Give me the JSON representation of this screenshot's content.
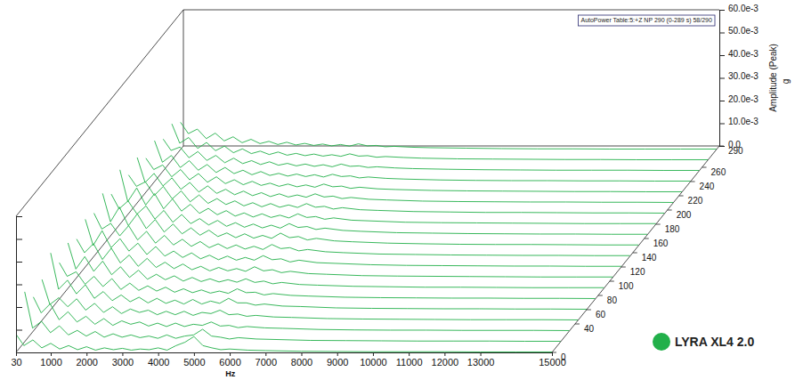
{
  "chart_data": {
    "type": "waterfall",
    "annotation": "AutoPower Table:5:+Z NP 290 (0-289 s) 58/290",
    "xlabel": "Hz",
    "ylabel": "Amplitude (Peak)",
    "yunit": "g",
    "x": [
      30,
      250,
      500,
      750,
      1000,
      1250,
      1500,
      1750,
      2000,
      2250,
      2500,
      2750,
      3000,
      3250,
      3500,
      3750,
      4000,
      4250,
      4500,
      4750,
      5000,
      5250,
      5500,
      5750,
      6000,
      6500,
      7000,
      8000,
      9000,
      10000,
      11000,
      12000,
      13000,
      14000,
      15000
    ],
    "xlim": [
      30,
      15000
    ],
    "xticks": [
      30,
      1000,
      2000,
      3000,
      4000,
      5000,
      6000,
      7000,
      8000,
      9000,
      10000,
      11000,
      12000,
      13000,
      15000
    ],
    "ylim": [
      0,
      0.06
    ],
    "yticks": [
      {
        "value": 0,
        "label": "0.0"
      },
      {
        "value": 0.01,
        "label": "10.0e-3"
      },
      {
        "value": 0.02,
        "label": "20.0e-3"
      },
      {
        "value": 0.03,
        "label": "30.0e-3"
      },
      {
        "value": 0.04,
        "label": "40.0e-3"
      },
      {
        "value": 0.05,
        "label": "50.0e-3"
      },
      {
        "value": 0.06,
        "label": "60.0e-3"
      }
    ],
    "zlim": [
      0,
      290
    ],
    "zticks": [
      0,
      40,
      60,
      80,
      100,
      120,
      140,
      160,
      180,
      200,
      220,
      240,
      260,
      290
    ],
    "legend": "bottom-right",
    "series": [
      {
        "name": "LYRA XL4 2.0",
        "color": "#22b04a",
        "z": [
          0,
          15,
          30,
          45,
          60,
          75,
          90,
          105,
          120,
          135,
          150,
          165,
          180,
          195,
          210,
          225,
          240,
          255,
          270,
          285
        ],
        "values": [
          [
            0.008,
            0.003,
            0.0055,
            0.002,
            0.004,
            0.0015,
            0.003,
            0.0012,
            0.0025,
            0.001,
            0.002,
            0.0012,
            0.0018,
            0.001,
            0.0015,
            0.0012,
            0.002,
            0.001,
            0.003,
            0.0045,
            0.007,
            0.003,
            0.002,
            0.0012,
            0.0015,
            0.001,
            0.0008,
            0.0005,
            0.0004,
            0.0003,
            0.0003,
            0.0003,
            0.0002,
            0.0002,
            0.0002
          ],
          [
            0.022,
            0.006,
            0.009,
            0.004,
            0.007,
            0.003,
            0.005,
            0.0025,
            0.0045,
            0.002,
            0.0035,
            0.002,
            0.003,
            0.0018,
            0.0025,
            0.0015,
            0.003,
            0.0015,
            0.0025,
            0.003,
            0.0055,
            0.0025,
            0.002,
            0.0012,
            0.0018,
            0.0012,
            0.001,
            0.0006,
            0.0005,
            0.0004,
            0.0003,
            0.0003,
            0.0003,
            0.0002,
            0.0002
          ],
          [
            0.015,
            0.008,
            0.012,
            0.005,
            0.0085,
            0.004,
            0.0065,
            0.003,
            0.0055,
            0.0025,
            0.0045,
            0.003,
            0.004,
            0.0022,
            0.0035,
            0.002,
            0.0035,
            0.002,
            0.003,
            0.0025,
            0.004,
            0.0022,
            0.0025,
            0.0015,
            0.002,
            0.0014,
            0.0012,
            0.0007,
            0.0005,
            0.0004,
            0.0004,
            0.0003,
            0.0003,
            0.0003,
            0.0002
          ],
          [
            0.018,
            0.007,
            0.01,
            0.006,
            0.0095,
            0.0045,
            0.0075,
            0.0035,
            0.006,
            0.003,
            0.005,
            0.0035,
            0.0045,
            0.0025,
            0.004,
            0.0025,
            0.004,
            0.0022,
            0.0035,
            0.003,
            0.0045,
            0.0025,
            0.0028,
            0.0018,
            0.0022,
            0.0015,
            0.0013,
            0.0008,
            0.0006,
            0.0005,
            0.0004,
            0.0003,
            0.0003,
            0.0003,
            0.0002
          ],
          [
            0.025,
            0.009,
            0.013,
            0.007,
            0.011,
            0.005,
            0.008,
            0.004,
            0.0065,
            0.0035,
            0.0055,
            0.003,
            0.005,
            0.0028,
            0.0042,
            0.0025,
            0.0045,
            0.0025,
            0.0038,
            0.0028,
            0.005,
            0.003,
            0.003,
            0.002,
            0.0025,
            0.0016,
            0.0014,
            0.0008,
            0.0006,
            0.0005,
            0.0004,
            0.0004,
            0.0003,
            0.0003,
            0.0002
          ],
          [
            0.016,
            0.01,
            0.012,
            0.0065,
            0.01,
            0.0055,
            0.009,
            0.0042,
            0.007,
            0.0038,
            0.0058,
            0.0035,
            0.0052,
            0.003,
            0.0045,
            0.0028,
            0.004,
            0.0026,
            0.0035,
            0.0025,
            0.0045,
            0.0028,
            0.003,
            0.0018,
            0.0024,
            0.0016,
            0.0013,
            0.0008,
            0.0006,
            0.0005,
            0.0004,
            0.0004,
            0.0003,
            0.0003,
            0.0002
          ],
          [
            0.02,
            0.0085,
            0.014,
            0.0075,
            0.012,
            0.006,
            0.0095,
            0.0048,
            0.008,
            0.004,
            0.0062,
            0.0038,
            0.0055,
            0.0032,
            0.0048,
            0.003,
            0.0042,
            0.0028,
            0.0038,
            0.0027,
            0.0042,
            0.0026,
            0.0032,
            0.002,
            0.0026,
            0.0017,
            0.0014,
            0.0009,
            0.0007,
            0.0005,
            0.0005,
            0.0004,
            0.0003,
            0.0003,
            0.0003
          ],
          [
            0.017,
            0.011,
            0.015,
            0.008,
            0.013,
            0.0065,
            0.01,
            0.005,
            0.0085,
            0.0045,
            0.0068,
            0.004,
            0.006,
            0.0035,
            0.005,
            0.003,
            0.0045,
            0.003,
            0.004,
            0.0028,
            0.0048,
            0.003,
            0.0035,
            0.0022,
            0.0028,
            0.0018,
            0.0015,
            0.0009,
            0.0007,
            0.0006,
            0.0005,
            0.0004,
            0.0003,
            0.0003,
            0.0003
          ],
          [
            0.021,
            0.0095,
            0.016,
            0.0085,
            0.0125,
            0.007,
            0.0105,
            0.0055,
            0.009,
            0.0048,
            0.007,
            0.0042,
            0.0062,
            0.0036,
            0.0052,
            0.0032,
            0.0048,
            0.003,
            0.0042,
            0.003,
            0.005,
            0.0032,
            0.0036,
            0.0022,
            0.003,
            0.0019,
            0.0016,
            0.001,
            0.0007,
            0.0006,
            0.0005,
            0.0004,
            0.0004,
            0.0003,
            0.0003
          ],
          [
            0.019,
            0.012,
            0.0145,
            0.009,
            0.0135,
            0.0072,
            0.011,
            0.0058,
            0.0092,
            0.005,
            0.0075,
            0.0044,
            0.0065,
            0.0038,
            0.0055,
            0.0034,
            0.005,
            0.0032,
            0.0044,
            0.003,
            0.0052,
            0.0034,
            0.0038,
            0.0024,
            0.003,
            0.002,
            0.0016,
            0.001,
            0.0008,
            0.0006,
            0.0005,
            0.0004,
            0.0004,
            0.0003,
            0.0003
          ],
          [
            0.023,
            0.0105,
            0.017,
            0.0088,
            0.014,
            0.0075,
            0.0115,
            0.006,
            0.0095,
            0.0052,
            0.0078,
            0.0046,
            0.0068,
            0.004,
            0.0056,
            0.0035,
            0.0052,
            0.0033,
            0.0045,
            0.0032,
            0.0055,
            0.0035,
            0.004,
            0.0025,
            0.0032,
            0.0021,
            0.0017,
            0.0011,
            0.0008,
            0.0006,
            0.0005,
            0.0005,
            0.0004,
            0.0003,
            0.0003
          ],
          [
            0.018,
            0.0115,
            0.015,
            0.0092,
            0.0128,
            0.007,
            0.0108,
            0.0056,
            0.009,
            0.005,
            0.0072,
            0.0044,
            0.0064,
            0.0038,
            0.0054,
            0.0034,
            0.0048,
            0.0031,
            0.0043,
            0.003,
            0.005,
            0.0033,
            0.0037,
            0.0024,
            0.003,
            0.002,
            0.0016,
            0.001,
            0.0008,
            0.0006,
            0.0005,
            0.0004,
            0.0004,
            0.0003,
            0.0003
          ],
          [
            0.024,
            0.01,
            0.016,
            0.0085,
            0.0135,
            0.0068,
            0.0112,
            0.0058,
            0.0088,
            0.0048,
            0.007,
            0.0042,
            0.006,
            0.0036,
            0.005,
            0.0032,
            0.0046,
            0.003,
            0.004,
            0.0028,
            0.0046,
            0.003,
            0.0034,
            0.0022,
            0.0028,
            0.0018,
            0.0015,
            0.0009,
            0.0007,
            0.0006,
            0.0005,
            0.0004,
            0.0003,
            0.0003,
            0.0003
          ],
          [
            0.017,
            0.012,
            0.014,
            0.008,
            0.012,
            0.0065,
            0.01,
            0.0052,
            0.0082,
            0.0045,
            0.0066,
            0.004,
            0.0056,
            0.0034,
            0.0048,
            0.003,
            0.0044,
            0.0028,
            0.0038,
            0.0027,
            0.0044,
            0.0028,
            0.0032,
            0.002,
            0.0026,
            0.0017,
            0.0014,
            0.0009,
            0.0007,
            0.0005,
            0.0005,
            0.0004,
            0.0003,
            0.0003,
            0.0002
          ],
          [
            0.02,
            0.009,
            0.013,
            0.0075,
            0.011,
            0.006,
            0.009,
            0.0048,
            0.0075,
            0.0042,
            0.006,
            0.0036,
            0.0052,
            0.0032,
            0.0045,
            0.0028,
            0.004,
            0.0026,
            0.0035,
            0.0025,
            0.004,
            0.0026,
            0.003,
            0.0019,
            0.0024,
            0.0016,
            0.0013,
            0.0008,
            0.0006,
            0.0005,
            0.0004,
            0.0004,
            0.0003,
            0.0003,
            0.0002
          ],
          [
            0.015,
            0.01,
            0.012,
            0.0068,
            0.01,
            0.0055,
            0.0082,
            0.0044,
            0.0068,
            0.0038,
            0.0055,
            0.0033,
            0.0048,
            0.003,
            0.004,
            0.0026,
            0.0036,
            0.0024,
            0.0032,
            0.0022,
            0.0036,
            0.0024,
            0.0027,
            0.0017,
            0.0022,
            0.0015,
            0.0012,
            0.0008,
            0.0006,
            0.0005,
            0.0004,
            0.0003,
            0.0003,
            0.0002,
            0.0002
          ],
          [
            0.018,
            0.0085,
            0.0115,
            0.0062,
            0.0092,
            0.005,
            0.0075,
            0.004,
            0.0062,
            0.0035,
            0.005,
            0.003,
            0.0044,
            0.0027,
            0.0036,
            0.0024,
            0.0033,
            0.0022,
            0.003,
            0.002,
            0.0032,
            0.0022,
            0.0025,
            0.0016,
            0.002,
            0.0014,
            0.0011,
            0.0007,
            0.0005,
            0.0004,
            0.0004,
            0.0003,
            0.0003,
            0.0002,
            0.0002
          ],
          [
            0.014,
            0.009,
            0.0105,
            0.0058,
            0.0085,
            0.0046,
            0.0068,
            0.0036,
            0.0056,
            0.0032,
            0.0045,
            0.0028,
            0.004,
            0.0025,
            0.0033,
            0.0022,
            0.003,
            0.002,
            0.0027,
            0.0018,
            0.003,
            0.002,
            0.0022,
            0.0015,
            0.0018,
            0.0013,
            0.001,
            0.0007,
            0.0005,
            0.0004,
            0.0003,
            0.0003,
            0.0003,
            0.0002,
            0.0002
          ],
          [
            0.016,
            0.0075,
            0.01,
            0.0052,
            0.0078,
            0.0042,
            0.0062,
            0.0033,
            0.005,
            0.0029,
            0.004,
            0.0025,
            0.0036,
            0.0022,
            0.003,
            0.002,
            0.0027,
            0.0018,
            0.0024,
            0.0017,
            0.0028,
            0.0018,
            0.002,
            0.0013,
            0.0016,
            0.0012,
            0.0009,
            0.0006,
            0.0005,
            0.0004,
            0.0003,
            0.0003,
            0.0002,
            0.0002,
            0.0002
          ],
          [
            0.012,
            0.007,
            0.009,
            0.0048,
            0.0072,
            0.0038,
            0.0056,
            0.003,
            0.0045,
            0.0026,
            0.0036,
            0.0022,
            0.0032,
            0.002,
            0.0027,
            0.0018,
            0.0024,
            0.0016,
            0.0022,
            0.0015,
            0.0025,
            0.0016,
            0.0018,
            0.0012,
            0.0014,
            0.001,
            0.0008,
            0.0006,
            0.0004,
            0.0003,
            0.0003,
            0.0002,
            0.0002,
            0.0002,
            0.0002
          ]
        ]
      }
    ]
  }
}
